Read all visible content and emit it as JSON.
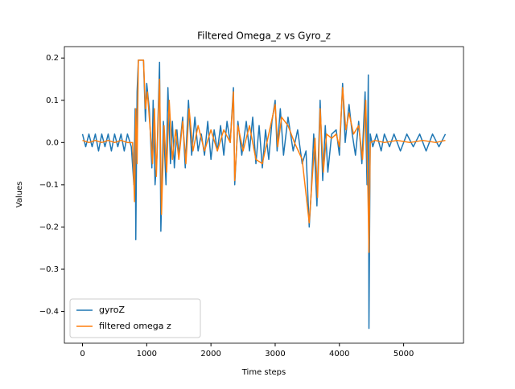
{
  "chart_data": {
    "type": "line",
    "title": "Filtered Omega_z vs Gyro_z",
    "x_label": "Time steps",
    "y_label": "Values",
    "xlim": [
      -282,
      5932
    ],
    "xticks": [
      0,
      1000,
      2000,
      3000,
      4000,
      5000
    ],
    "ylim": [
      -0.475,
      0.227
    ],
    "yticks": [
      {
        "value": -0.4,
        "label": "−0.4"
      },
      {
        "value": -0.3,
        "label": "−0.3"
      },
      {
        "value": -0.2,
        "label": "−0.2"
      },
      {
        "value": -0.1,
        "label": "−0.1"
      },
      {
        "value": 0,
        "label": "0.0"
      },
      0.1,
      0.2
    ],
    "legend": "lower left",
    "series": [
      {
        "name": "gyroZ",
        "color": "#1f77b4",
        "x": [
          0,
          50,
          100,
          150,
          200,
          250,
          300,
          350,
          400,
          450,
          500,
          550,
          600,
          650,
          700,
          760,
          800,
          820,
          830,
          850,
          870,
          950,
          980,
          1000,
          1040,
          1080,
          1100,
          1130,
          1160,
          1200,
          1220,
          1260,
          1300,
          1330,
          1370,
          1400,
          1430,
          1470,
          1500,
          1560,
          1600,
          1650,
          1700,
          1750,
          1800,
          1850,
          1900,
          1950,
          2000,
          2050,
          2100,
          2150,
          2200,
          2250,
          2300,
          2350,
          2370,
          2420,
          2480,
          2550,
          2600,
          2650,
          2700,
          2750,
          2800,
          2850,
          2900,
          2950,
          3000,
          3030,
          3080,
          3130,
          3200,
          3280,
          3350,
          3420,
          3480,
          3530,
          3560,
          3600,
          3650,
          3700,
          3740,
          3780,
          3820,
          3880,
          3950,
          4000,
          4050,
          4090,
          4150,
          4200,
          4250,
          4300,
          4350,
          4400,
          4430,
          4450,
          4460,
          4480,
          4520,
          4580,
          4650,
          4700,
          4780,
          4850,
          4950,
          5050,
          5150,
          5250,
          5350,
          5450,
          5550,
          5650
        ],
        "values": [
          0.02,
          -0.01,
          0.02,
          -0.01,
          0.02,
          -0.02,
          0.02,
          -0.01,
          0.02,
          -0.02,
          0.02,
          -0.01,
          0.02,
          -0.02,
          0.02,
          -0.01,
          -0.1,
          0.08,
          -0.23,
          0.12,
          0.195,
          0.195,
          0.05,
          0.14,
          0.08,
          -0.06,
          0.1,
          -0.1,
          -0.03,
          0.19,
          -0.21,
          0.05,
          -0.1,
          0.13,
          -0.05,
          0.05,
          -0.06,
          0.03,
          -0.03,
          0.06,
          -0.06,
          0.1,
          -0.03,
          0.06,
          -0.02,
          0.02,
          -0.03,
          0.05,
          -0.04,
          0.03,
          -0.02,
          0.04,
          -0.03,
          0.05,
          0.0,
          0.13,
          -0.1,
          0.05,
          -0.03,
          0.05,
          -0.02,
          0.06,
          -0.05,
          0.04,
          -0.06,
          0.03,
          -0.04,
          0.05,
          0.1,
          -0.02,
          0.08,
          -0.03,
          0.06,
          -0.02,
          0.03,
          -0.05,
          -0.02,
          -0.2,
          -0.12,
          0.02,
          -0.15,
          0.1,
          -0.09,
          0.04,
          -0.07,
          0.02,
          0.03,
          -0.03,
          0.14,
          0.0,
          0.09,
          0.02,
          -0.03,
          0.05,
          -0.05,
          0.12,
          -0.1,
          0.16,
          -0.44,
          0.02,
          -0.01,
          0.02,
          -0.02,
          0.02,
          -0.01,
          0.02,
          -0.02,
          0.02,
          -0.01,
          0.02,
          -0.02,
          0.02,
          -0.01,
          0.02
        ]
      },
      {
        "name": "filtered omega z",
        "color": "#ff7f0e",
        "x": [
          0,
          100,
          200,
          300,
          400,
          500,
          600,
          700,
          780,
          810,
          830,
          850,
          870,
          950,
          980,
          1010,
          1050,
          1090,
          1120,
          1150,
          1200,
          1230,
          1270,
          1310,
          1350,
          1400,
          1450,
          1500,
          1560,
          1610,
          1660,
          1720,
          1800,
          1900,
          2000,
          2100,
          2200,
          2300,
          2350,
          2370,
          2420,
          2500,
          2600,
          2700,
          2800,
          2900,
          3000,
          3040,
          3100,
          3200,
          3300,
          3420,
          3530,
          3570,
          3620,
          3660,
          3700,
          3750,
          3800,
          3880,
          3950,
          4000,
          4050,
          4100,
          4150,
          4220,
          4300,
          4360,
          4410,
          4440,
          4460,
          4480,
          4550,
          4700,
          4900,
          5100,
          5300,
          5500,
          5650
        ],
        "values": [
          0.005,
          0.0,
          0.005,
          0.0,
          0.005,
          0.0,
          0.005,
          0.0,
          0.0,
          -0.14,
          0.08,
          -0.05,
          0.195,
          0.195,
          0.08,
          0.12,
          0.04,
          -0.05,
          0.08,
          -0.08,
          0.15,
          -0.17,
          0.04,
          -0.07,
          0.1,
          -0.04,
          0.03,
          -0.04,
          0.05,
          -0.05,
          0.08,
          -0.02,
          0.04,
          -0.02,
          0.03,
          -0.02,
          0.03,
          0.0,
          0.12,
          -0.09,
          0.04,
          -0.02,
          0.04,
          -0.04,
          -0.05,
          0.02,
          0.09,
          -0.01,
          0.06,
          0.04,
          0.0,
          -0.04,
          -0.19,
          -0.1,
          0.01,
          -0.13,
          0.08,
          -0.07,
          0.02,
          0.01,
          0.02,
          -0.01,
          0.13,
          0.03,
          0.07,
          0.02,
          0.04,
          -0.04,
          0.1,
          -0.08,
          -0.26,
          0.0,
          0.005,
          0.0,
          0.005,
          0.0,
          0.005,
          0.0,
          0.005
        ]
      }
    ]
  }
}
